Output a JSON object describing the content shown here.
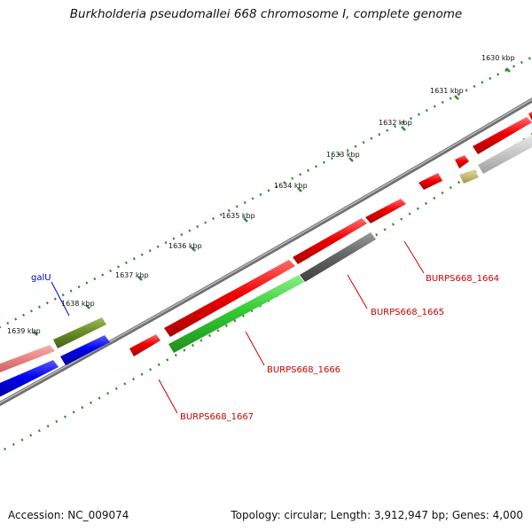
{
  "title": "Burkholderia pseudomallei 668 chromosome I, complete genome",
  "footer": {
    "accession": "Accession: NC_009074",
    "topology": "Topology: circular; Length: 3,912,947 bp; Genes: 4,000"
  },
  "ticks": [
    "1630 kbp",
    "1631 kbp",
    "1632 kbp",
    "1633 kbp",
    "1634 kbp",
    "1635 kbp",
    "1636 kbp",
    "1637 kbp",
    "1638 kbp",
    "1639 kbp"
  ],
  "gene_labels": [
    {
      "text": "galU",
      "color": "#0000cc"
    },
    {
      "text": "BURPS668_1664",
      "color": "#cc0000"
    },
    {
      "text": "BURPS668_1665",
      "color": "#cc0000"
    },
    {
      "text": "BURPS668_1666",
      "color": "#cc0000"
    },
    {
      "text": "BURPS668_1667",
      "color": "#cc0000"
    }
  ],
  "colors": {
    "backbone": "#888888",
    "tick_dots": "#2e8b2e",
    "cds": "#ee0000",
    "trna": "#0000dd",
    "rrna": "#2ecc2e",
    "pseudo": "#666666",
    "other": "#6b8e23"
  }
}
